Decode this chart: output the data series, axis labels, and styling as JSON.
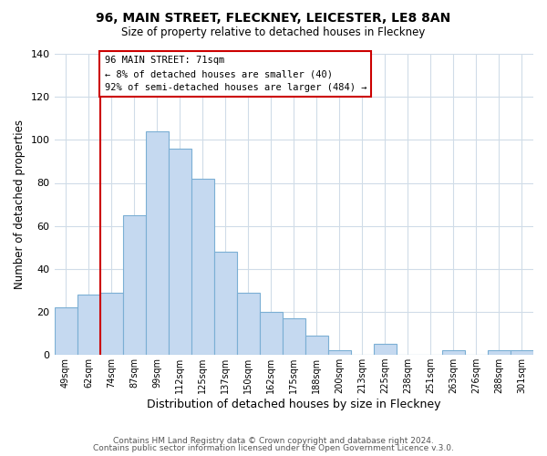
{
  "title": "96, MAIN STREET, FLECKNEY, LEICESTER, LE8 8AN",
  "subtitle": "Size of property relative to detached houses in Fleckney",
  "xlabel": "Distribution of detached houses by size in Fleckney",
  "ylabel": "Number of detached properties",
  "bar_color": "#c5d9f0",
  "bar_edge_color": "#7bafd4",
  "categories": [
    "49sqm",
    "62sqm",
    "74sqm",
    "87sqm",
    "99sqm",
    "112sqm",
    "125sqm",
    "137sqm",
    "150sqm",
    "162sqm",
    "175sqm",
    "188sqm",
    "200sqm",
    "213sqm",
    "225sqm",
    "238sqm",
    "251sqm",
    "263sqm",
    "276sqm",
    "288sqm",
    "301sqm"
  ],
  "values": [
    22,
    28,
    29,
    65,
    104,
    96,
    82,
    48,
    29,
    20,
    17,
    9,
    2,
    0,
    5,
    0,
    0,
    2,
    0,
    2,
    2
  ],
  "ylim": [
    0,
    140
  ],
  "yticks": [
    0,
    20,
    40,
    60,
    80,
    100,
    120,
    140
  ],
  "marker_index": 2,
  "marker_color": "#cc0000",
  "annotation_title": "96 MAIN STREET: 71sqm",
  "annotation_line1": "← 8% of detached houses are smaller (40)",
  "annotation_line2": "92% of semi-detached houses are larger (484) →",
  "footer1": "Contains HM Land Registry data © Crown copyright and database right 2024.",
  "footer2": "Contains public sector information licensed under the Open Government Licence v.3.0.",
  "background_color": "#ffffff",
  "grid_color": "#d0dce8"
}
